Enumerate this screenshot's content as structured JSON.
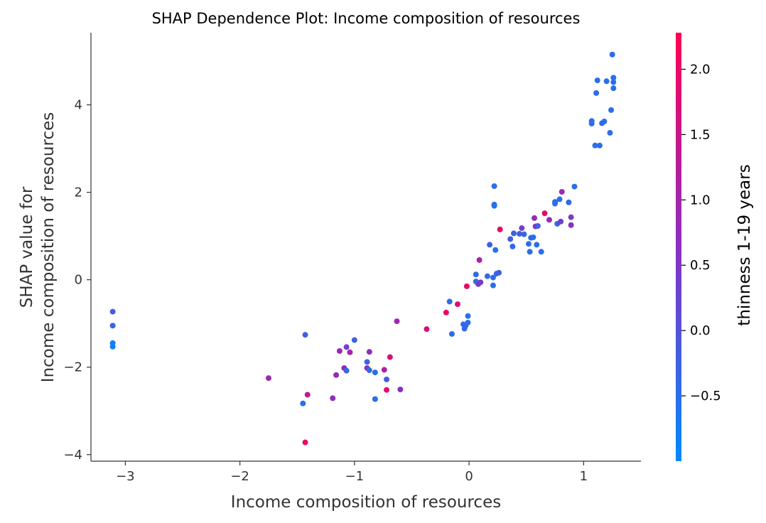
{
  "chart_data": {
    "type": "scatter",
    "title": "SHAP Dependence Plot: Income composition of resources",
    "xlabel": "Income composition of resources",
    "ylabel_lines": [
      "SHAP value for",
      "Income composition of resources"
    ],
    "xlim": [
      -3.3,
      1.5
    ],
    "ylim": [
      -4.15,
      5.65
    ],
    "x_ticks": [
      -3,
      -2,
      -1,
      0,
      1
    ],
    "x_tick_labels": [
      "−3",
      "−2",
      "−1",
      "0",
      "1"
    ],
    "y_ticks": [
      -4,
      -2,
      0,
      2,
      4
    ],
    "y_tick_labels": [
      "−4",
      "−2",
      "0",
      "2",
      "4"
    ],
    "grid": false,
    "colorbar": {
      "label": "thinness  1-19 years",
      "range": [
        -1.0,
        2.28
      ],
      "ticks": [
        -0.5,
        0.0,
        0.5,
        1.0,
        1.5,
        2.0
      ],
      "tick_labels": [
        "−0.5",
        "0.0",
        "0.5",
        "1.0",
        "1.5",
        "2.0"
      ],
      "color_low": "#008afb",
      "color_high": "#ff0052"
    },
    "points": [
      {
        "x": -3.11,
        "y": -0.73,
        "c": -0.15
      },
      {
        "x": -3.11,
        "y": -1.05,
        "c": -0.3
      },
      {
        "x": -3.11,
        "y": -1.45,
        "c": -0.8
      },
      {
        "x": -3.11,
        "y": -1.53,
        "c": -0.8
      },
      {
        "x": -1.75,
        "y": -2.25,
        "c": 0.85
      },
      {
        "x": -1.45,
        "y": -2.83,
        "c": -0.5
      },
      {
        "x": -1.43,
        "y": -1.26,
        "c": -0.2
      },
      {
        "x": -1.43,
        "y": -3.72,
        "c": 2.0
      },
      {
        "x": -1.41,
        "y": -2.63,
        "c": 1.3
      },
      {
        "x": -1.19,
        "y": -2.71,
        "c": 0.7
      },
      {
        "x": -1.16,
        "y": -2.18,
        "c": 0.8
      },
      {
        "x": -1.13,
        "y": -1.63,
        "c": 0.9
      },
      {
        "x": -1.09,
        "y": -2.02,
        "c": 0.7
      },
      {
        "x": -1.07,
        "y": -1.54,
        "c": 0.4
      },
      {
        "x": -1.07,
        "y": -2.08,
        "c": -0.35
      },
      {
        "x": -1.04,
        "y": -1.66,
        "c": 1.0
      },
      {
        "x": -1.0,
        "y": -1.38,
        "c": -0.25
      },
      {
        "x": -0.89,
        "y": -1.88,
        "c": -0.3
      },
      {
        "x": -0.89,
        "y": -2.02,
        "c": 0.6
      },
      {
        "x": -0.87,
        "y": -2.07,
        "c": -0.4
      },
      {
        "x": -0.87,
        "y": -1.65,
        "c": 0.75
      },
      {
        "x": -0.82,
        "y": -2.73,
        "c": -0.5
      },
      {
        "x": -0.82,
        "y": -2.12,
        "c": -0.5
      },
      {
        "x": -0.74,
        "y": -2.06,
        "c": 1.1
      },
      {
        "x": -0.72,
        "y": -2.28,
        "c": -0.2
      },
      {
        "x": -0.72,
        "y": -2.52,
        "c": 1.9
      },
      {
        "x": -0.69,
        "y": -1.77,
        "c": 1.8
      },
      {
        "x": -0.63,
        "y": -0.95,
        "c": 0.9
      },
      {
        "x": -0.6,
        "y": -2.51,
        "c": 0.6
      },
      {
        "x": -0.37,
        "y": -1.13,
        "c": 1.7
      },
      {
        "x": -0.2,
        "y": -0.75,
        "c": 2.0
      },
      {
        "x": -0.17,
        "y": -0.5,
        "c": -0.45
      },
      {
        "x": -0.15,
        "y": -1.24,
        "c": -0.45
      },
      {
        "x": -0.1,
        "y": -0.56,
        "c": 1.75
      },
      {
        "x": -0.05,
        "y": -1.02,
        "c": -0.4
      },
      {
        "x": -0.04,
        "y": -1.12,
        "c": -0.3
      },
      {
        "x": -0.03,
        "y": -1.05,
        "c": -0.4
      },
      {
        "x": -0.02,
        "y": -0.15,
        "c": 1.95
      },
      {
        "x": -0.01,
        "y": -0.83,
        "c": -0.55
      },
      {
        "x": -0.01,
        "y": -0.98,
        "c": -0.5
      },
      {
        "x": 0.06,
        "y": 0.12,
        "c": -0.4
      },
      {
        "x": 0.06,
        "y": -0.04,
        "c": -0.4
      },
      {
        "x": 0.08,
        "y": -0.1,
        "c": 0.3
      },
      {
        "x": 0.09,
        "y": 0.45,
        "c": 1.1
      },
      {
        "x": 0.1,
        "y": -0.06,
        "c": 0.5
      },
      {
        "x": 0.16,
        "y": 0.08,
        "c": -0.4
      },
      {
        "x": 0.18,
        "y": 0.8,
        "c": -0.2
      },
      {
        "x": 0.21,
        "y": 0.05,
        "c": -0.5
      },
      {
        "x": 0.21,
        "y": -0.13,
        "c": -0.5
      },
      {
        "x": 0.22,
        "y": 2.14,
        "c": -0.5
      },
      {
        "x": 0.22,
        "y": 1.72,
        "c": -0.5
      },
      {
        "x": 0.22,
        "y": 1.69,
        "c": -0.5
      },
      {
        "x": 0.23,
        "y": 0.68,
        "c": -0.5
      },
      {
        "x": 0.24,
        "y": 0.14,
        "c": -0.35
      },
      {
        "x": 0.26,
        "y": 0.16,
        "c": -0.25
      },
      {
        "x": 0.27,
        "y": 1.15,
        "c": 2.0
      },
      {
        "x": 0.36,
        "y": 0.93,
        "c": -0.25
      },
      {
        "x": 0.38,
        "y": 0.76,
        "c": -0.4
      },
      {
        "x": 0.39,
        "y": 1.06,
        "c": -0.25
      },
      {
        "x": 0.44,
        "y": 1.05,
        "c": -0.2
      },
      {
        "x": 0.46,
        "y": 1.18,
        "c": 0.35
      },
      {
        "x": 0.48,
        "y": 1.04,
        "c": -0.3
      },
      {
        "x": 0.52,
        "y": 0.82,
        "c": -0.5
      },
      {
        "x": 0.53,
        "y": 0.64,
        "c": -0.5
      },
      {
        "x": 0.54,
        "y": 0.96,
        "c": -0.4
      },
      {
        "x": 0.56,
        "y": 0.97,
        "c": -0.5
      },
      {
        "x": 0.57,
        "y": 1.41,
        "c": 0.8
      },
      {
        "x": 0.58,
        "y": 1.22,
        "c": 0.6
      },
      {
        "x": 0.59,
        "y": 0.8,
        "c": -0.5
      },
      {
        "x": 0.6,
        "y": 1.23,
        "c": -0.3
      },
      {
        "x": 0.63,
        "y": 0.64,
        "c": -0.5
      },
      {
        "x": 0.66,
        "y": 1.52,
        "c": 1.9
      },
      {
        "x": 0.7,
        "y": 1.37,
        "c": 0.8
      },
      {
        "x": 0.75,
        "y": 1.74,
        "c": -0.5
      },
      {
        "x": 0.75,
        "y": 1.78,
        "c": -0.5
      },
      {
        "x": 0.77,
        "y": 1.28,
        "c": -0.3
      },
      {
        "x": 0.79,
        "y": 1.84,
        "c": -0.5
      },
      {
        "x": 0.8,
        "y": 1.33,
        "c": 0.3
      },
      {
        "x": 0.81,
        "y": 2.01,
        "c": 0.75
      },
      {
        "x": 0.87,
        "y": 1.77,
        "c": -0.4
      },
      {
        "x": 0.89,
        "y": 1.25,
        "c": 0.6
      },
      {
        "x": 0.89,
        "y": 1.43,
        "c": 0.5
      },
      {
        "x": 0.92,
        "y": 2.13,
        "c": -0.5
      },
      {
        "x": 1.07,
        "y": 3.63,
        "c": -0.5
      },
      {
        "x": 1.07,
        "y": 3.57,
        "c": -0.5
      },
      {
        "x": 1.1,
        "y": 3.07,
        "c": -0.5
      },
      {
        "x": 1.11,
        "y": 4.27,
        "c": -0.5
      },
      {
        "x": 1.12,
        "y": 4.56,
        "c": -0.5
      },
      {
        "x": 1.14,
        "y": 3.07,
        "c": -0.5
      },
      {
        "x": 1.16,
        "y": 3.58,
        "c": -0.5
      },
      {
        "x": 1.18,
        "y": 3.62,
        "c": -0.5
      },
      {
        "x": 1.2,
        "y": 4.54,
        "c": -0.5
      },
      {
        "x": 1.23,
        "y": 3.36,
        "c": -0.5
      },
      {
        "x": 1.24,
        "y": 3.88,
        "c": -0.5
      },
      {
        "x": 1.25,
        "y": 5.15,
        "c": -0.5
      },
      {
        "x": 1.26,
        "y": 4.62,
        "c": -0.5
      },
      {
        "x": 1.26,
        "y": 4.52,
        "c": -0.5
      },
      {
        "x": 1.26,
        "y": 4.38,
        "c": -0.5
      }
    ]
  }
}
